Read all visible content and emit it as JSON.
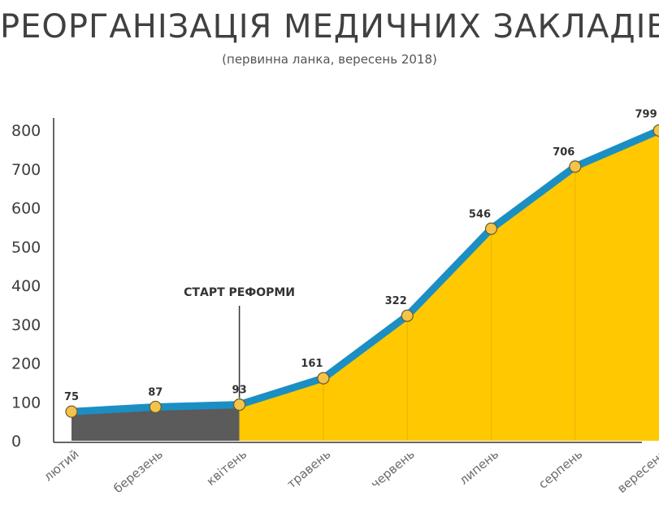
{
  "chart_data": {
    "type": "area",
    "title": "РЕОРГАНІЗАЦІЯ МЕДИЧНИХ ЗАКЛАДІВ",
    "subtitle": "(первинна ланка, вересень 2018)",
    "categories": [
      "лютий",
      "березень",
      "квітень",
      "травень",
      "червень",
      "липень",
      "серпень",
      "вересень"
    ],
    "values": [
      75,
      87,
      93,
      161,
      322,
      546,
      706,
      799
    ],
    "value_labels": [
      "75",
      "87",
      "93",
      "161",
      "322",
      "546",
      "706",
      "799"
    ],
    "yticks": [
      0,
      100,
      200,
      300,
      400,
      500,
      600,
      700,
      800
    ],
    "ytick_labels": [
      "0",
      "100",
      "200",
      "300",
      "400",
      "500",
      "600",
      "700",
      "800"
    ],
    "ylim": [
      0,
      800
    ],
    "annotation": {
      "text": "СТАРТ РЕФОРМИ",
      "at_category": "квітень"
    },
    "grid": false,
    "colors": {
      "before_fill": "#5b5b5b",
      "after_fill": "#ffc800",
      "line": "#1b8fc4",
      "marker_fill": "#f3c34a",
      "marker_stroke": "#6b5a2a"
    }
  }
}
